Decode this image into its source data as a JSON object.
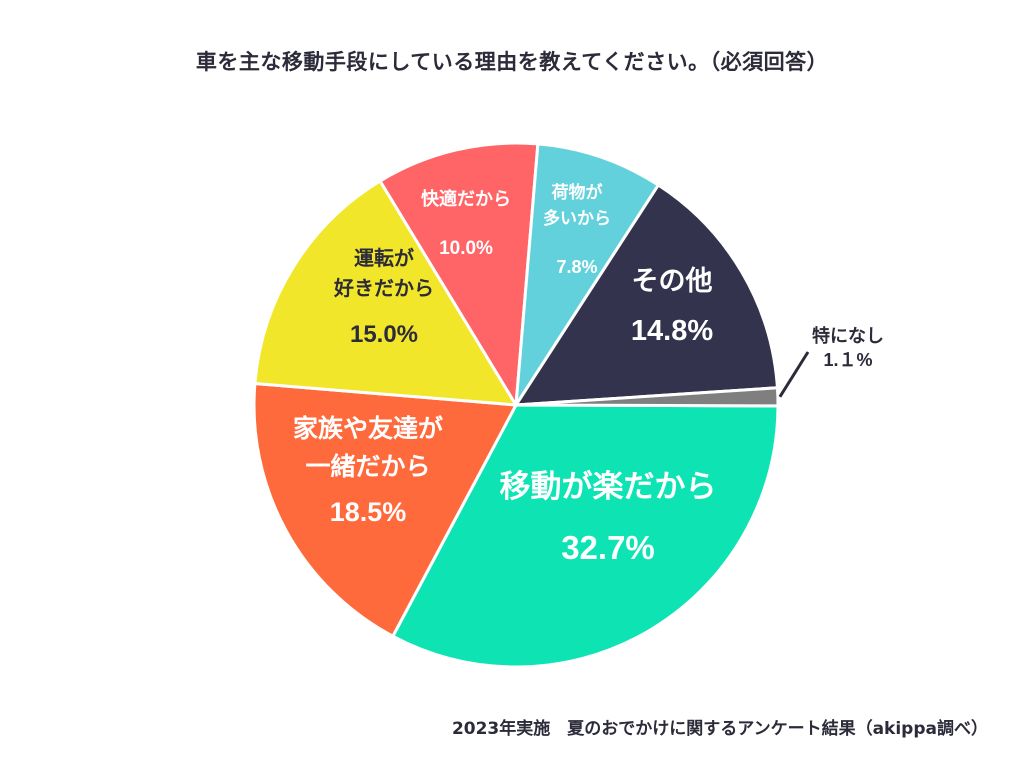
{
  "chart_data": {
    "type": "pie",
    "title": "車を主な移動手段にしている理由を教えてください。（必須回答）",
    "slices": [
      {
        "label": "移動が楽だから",
        "label_lines": [
          "移動が楽だから"
        ],
        "value": 32.7,
        "value_text": "32.7%",
        "color": "#0ee3b4",
        "text_color": "#ffffff"
      },
      {
        "label": "家族や友達が一緒だから",
        "label_lines": [
          "家族や友達が",
          "一緒だから"
        ],
        "value": 18.5,
        "value_text": "18.5%",
        "color": "#ff6a3d",
        "text_color": "#ffffff"
      },
      {
        "label": "運転が好きだから",
        "label_lines": [
          "運転が",
          "好きだから"
        ],
        "value": 15.0,
        "value_text": "15.0%",
        "color": "#f2e62a",
        "text_color": "#2b2b3a"
      },
      {
        "label": "快適だから",
        "label_lines": [
          "快適だから"
        ],
        "value": 10.0,
        "value_text": "10.0%",
        "color": "#ff6467",
        "text_color": "#ffffff"
      },
      {
        "label": "荷物が多いから",
        "label_lines": [
          "荷物が",
          "多いから"
        ],
        "value": 7.8,
        "value_text": "7.8%",
        "color": "#63d1db",
        "text_color": "#ffffff"
      },
      {
        "label": "その他",
        "label_lines": [
          "その他"
        ],
        "value": 14.8,
        "value_text": "14.8%",
        "color": "#33334d",
        "text_color": "#ffffff"
      },
      {
        "label": "特になし",
        "label_lines": [
          "特になし"
        ],
        "value": 1.1,
        "value_text": "1.１%",
        "color": "#7f7f7f",
        "text_color": "#2b2b3a"
      }
    ]
  },
  "footer": "2023年実施　夏のおでかけに関するアンケート結果（akippa調べ）"
}
